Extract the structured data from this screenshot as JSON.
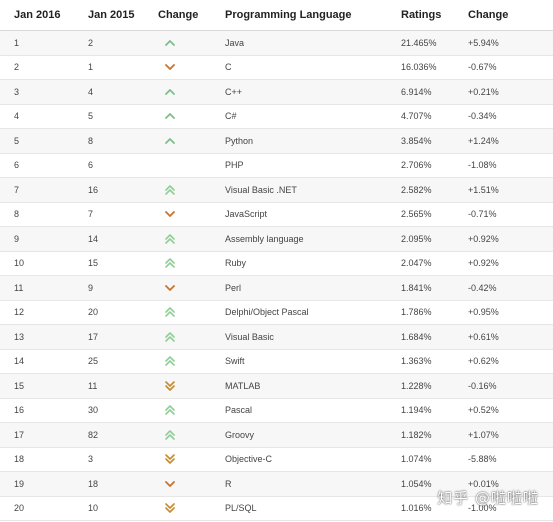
{
  "columns": {
    "jan2016": "Jan 2016",
    "jan2015": "Jan 2015",
    "change": "Change",
    "language": "Programming Language",
    "ratings": "Ratings",
    "change_pct": "Change"
  },
  "colors": {
    "up": "#7cbf8a",
    "down": "#c8742c",
    "double_up": "#8fcf96",
    "double_down": "#c88a2e"
  },
  "rows": [
    {
      "jan2016": "1",
      "jan2015": "2",
      "trend": "up-icon",
      "language": "Java",
      "ratings": "21.465%",
      "change": "+5.94%"
    },
    {
      "jan2016": "2",
      "jan2015": "1",
      "trend": "down-icon",
      "language": "C",
      "ratings": "16.036%",
      "change": "-0.67%"
    },
    {
      "jan2016": "3",
      "jan2015": "4",
      "trend": "up-icon",
      "language": "C++",
      "ratings": "6.914%",
      "change": "+0.21%"
    },
    {
      "jan2016": "4",
      "jan2015": "5",
      "trend": "up-icon",
      "language": "C#",
      "ratings": "4.707%",
      "change": "-0.34%"
    },
    {
      "jan2016": "5",
      "jan2015": "8",
      "trend": "up-icon",
      "language": "Python",
      "ratings": "3.854%",
      "change": "+1.24%"
    },
    {
      "jan2016": "6",
      "jan2015": "6",
      "trend": "",
      "language": "PHP",
      "ratings": "2.706%",
      "change": "-1.08%"
    },
    {
      "jan2016": "7",
      "jan2015": "16",
      "trend": "double-up-icon",
      "language": "Visual Basic .NET",
      "ratings": "2.582%",
      "change": "+1.51%"
    },
    {
      "jan2016": "8",
      "jan2015": "7",
      "trend": "down-icon",
      "language": "JavaScript",
      "ratings": "2.565%",
      "change": "-0.71%"
    },
    {
      "jan2016": "9",
      "jan2015": "14",
      "trend": "double-up-icon",
      "language": "Assembly language",
      "ratings": "2.095%",
      "change": "+0.92%"
    },
    {
      "jan2016": "10",
      "jan2015": "15",
      "trend": "double-up-icon",
      "language": "Ruby",
      "ratings": "2.047%",
      "change": "+0.92%"
    },
    {
      "jan2016": "11",
      "jan2015": "9",
      "trend": "down-icon",
      "language": "Perl",
      "ratings": "1.841%",
      "change": "-0.42%"
    },
    {
      "jan2016": "12",
      "jan2015": "20",
      "trend": "double-up-icon",
      "language": "Delphi/Object Pascal",
      "ratings": "1.786%",
      "change": "+0.95%"
    },
    {
      "jan2016": "13",
      "jan2015": "17",
      "trend": "double-up-icon",
      "language": "Visual Basic",
      "ratings": "1.684%",
      "change": "+0.61%"
    },
    {
      "jan2016": "14",
      "jan2015": "25",
      "trend": "double-up-icon",
      "language": "Swift",
      "ratings": "1.363%",
      "change": "+0.62%"
    },
    {
      "jan2016": "15",
      "jan2015": "11",
      "trend": "double-down-icon",
      "language": "MATLAB",
      "ratings": "1.228%",
      "change": "-0.16%"
    },
    {
      "jan2016": "16",
      "jan2015": "30",
      "trend": "double-up-icon",
      "language": "Pascal",
      "ratings": "1.194%",
      "change": "+0.52%"
    },
    {
      "jan2016": "17",
      "jan2015": "82",
      "trend": "double-up-icon",
      "language": "Groovy",
      "ratings": "1.182%",
      "change": "+1.07%"
    },
    {
      "jan2016": "18",
      "jan2015": "3",
      "trend": "double-down-icon",
      "language": "Objective-C",
      "ratings": "1.074%",
      "change": "-5.88%"
    },
    {
      "jan2016": "19",
      "jan2015": "18",
      "trend": "down-icon",
      "language": "R",
      "ratings": "1.054%",
      "change": "+0.01%"
    },
    {
      "jan2016": "20",
      "jan2015": "10",
      "trend": "double-down-icon",
      "language": "PL/SQL",
      "ratings": "1.016%",
      "change": "-1.00%"
    }
  ],
  "watermark": "知乎 @啦啦啦"
}
